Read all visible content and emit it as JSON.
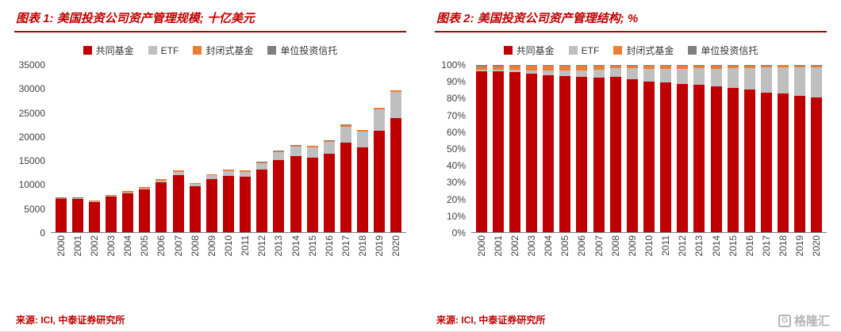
{
  "page": {
    "watermark": "格隆汇",
    "accent_red": "#C00000"
  },
  "panels": [
    {
      "title": "图表 1:  美国投资公司资产管理规模; 十亿美元",
      "source": "来源: ICI, 中泰证券研究所",
      "chart_data": {
        "type": "bar",
        "stacked": true,
        "percent": false,
        "grid": false,
        "legend_position": "top",
        "title": "美国投资公司资产管理规模",
        "ylabel": "十亿美元",
        "ylim": [
          0,
          35000
        ],
        "ytick_labels": [
          "0",
          "5000",
          "10000",
          "15000",
          "20000",
          "25000",
          "30000",
          "35000"
        ],
        "categories": [
          "2000",
          "2001",
          "2002",
          "2003",
          "2004",
          "2005",
          "2006",
          "2007",
          "2008",
          "2009",
          "2010",
          "2011",
          "2012",
          "2013",
          "2014",
          "2015",
          "2016",
          "2017",
          "2018",
          "2019",
          "2020"
        ],
        "series": [
          {
            "name": "共同基金",
            "color": "#C00000",
            "values": [
              6964,
              6974,
              6383,
              7402,
              8095,
              8891,
              10397,
              12000,
              9603,
              11113,
              11831,
              11627,
              13044,
              15049,
              15873,
              15650,
              16344,
              18746,
              17707,
              21291,
              23896
            ]
          },
          {
            "name": "ETF",
            "color": "#BFBFBF",
            "values": [
              66,
              83,
              102,
              151,
              228,
              301,
              423,
              608,
              531,
              777,
              992,
              1048,
              1337,
              1675,
              1974,
              2100,
              2524,
              3401,
              3371,
              4396,
              5449
            ]
          },
          {
            "name": "封闭式基金",
            "color": "#ED7D31",
            "values": [
              143,
              141,
              159,
              214,
              253,
              276,
              297,
              312,
              184,
              223,
              238,
              239,
              264,
              279,
              289,
              261,
              262,
              275,
              250,
              278,
              279
            ]
          },
          {
            "name": "单位投资信托",
            "color": "#7F7F7F",
            "values": [
              74,
              49,
              36,
              36,
              37,
              41,
              50,
              53,
              29,
              38,
              51,
              60,
              72,
              87,
              101,
              94,
              85,
              85,
              70,
              79,
              78
            ]
          }
        ]
      }
    },
    {
      "title": "图表 2:  美国投资公司资产管理结构; %",
      "source": "来源: ICI, 中泰证券研究所",
      "chart_data": {
        "type": "bar",
        "stacked": true,
        "percent": true,
        "grid": false,
        "legend_position": "top",
        "title": "美国投资公司资产管理结构",
        "ylabel": "%",
        "ylim": [
          0,
          100
        ],
        "ytick_labels": [
          "0%",
          "10%",
          "20%",
          "30%",
          "40%",
          "50%",
          "60%",
          "70%",
          "80%",
          "90%",
          "100%"
        ],
        "categories": [
          "2000",
          "2001",
          "2002",
          "2003",
          "2004",
          "2005",
          "2006",
          "2007",
          "2008",
          "2009",
          "2010",
          "2011",
          "2012",
          "2013",
          "2014",
          "2015",
          "2016",
          "2017",
          "2018",
          "2019",
          "2020"
        ],
        "series": [
          {
            "name": "共同基金",
            "color": "#C00000",
            "values": [
              96.1,
              96.2,
              95.6,
              94.9,
              94.0,
              93.5,
              93.1,
              92.5,
              92.8,
              91.5,
              90.2,
              89.6,
              88.6,
              88.1,
              87.0,
              86.4,
              85.1,
              83.3,
              82.8,
              81.7,
              80.5
            ]
          },
          {
            "name": "ETF",
            "color": "#BFBFBF",
            "values": [
              0.9,
              1.1,
              1.5,
              1.9,
              2.6,
              3.2,
              3.8,
              4.7,
              5.1,
              6.4,
              7.6,
              8.1,
              9.1,
              9.8,
              10.8,
              11.6,
              13.1,
              15.1,
              15.8,
              16.9,
              18.3
            ]
          },
          {
            "name": "封闭式基金",
            "color": "#ED7D31",
            "values": [
              2.0,
              1.9,
              2.4,
              2.7,
              2.9,
              2.9,
              2.7,
              2.4,
              1.8,
              1.8,
              1.8,
              1.8,
              1.8,
              1.6,
              1.6,
              1.4,
              1.4,
              1.2,
              1.2,
              1.1,
              0.9
            ]
          },
          {
            "name": "单位投资信托",
            "color": "#7F7F7F",
            "values": [
              1.0,
              0.7,
              0.5,
              0.5,
              0.4,
              0.4,
              0.4,
              0.4,
              0.3,
              0.3,
              0.4,
              0.5,
              0.5,
              0.5,
              0.6,
              0.5,
              0.4,
              0.4,
              0.2,
              0.3,
              0.3
            ]
          }
        ]
      }
    }
  ]
}
